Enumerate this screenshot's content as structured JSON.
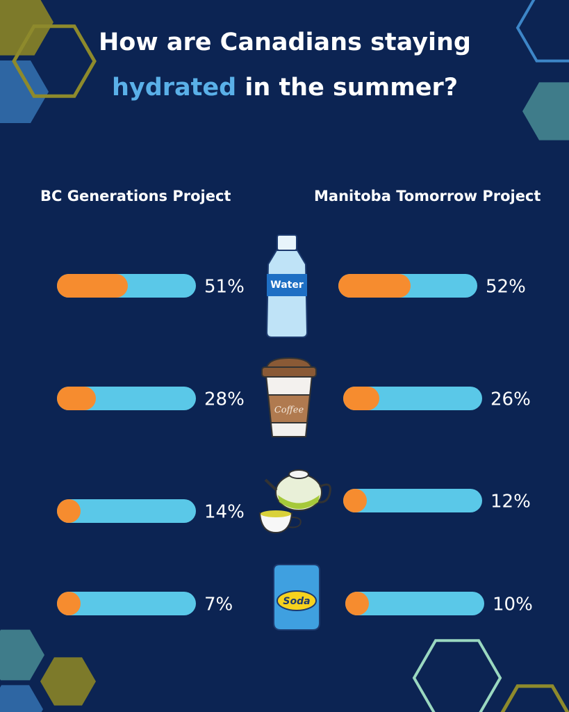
{
  "title": {
    "line1": "How are Canadians staying",
    "highlight": "hydrated",
    "rest": "in the summer?"
  },
  "icons": [
    "Water",
    "Coffee",
    null,
    "Soda"
  ],
  "chart_data": [
    {
      "type": "bar",
      "title": "BC Generations Project",
      "values": [
        51,
        28,
        14,
        7
      ],
      "value_labels": [
        "51%",
        "28%",
        "14%",
        "7%"
      ],
      "xlim": [
        0,
        100
      ],
      "color": "#f68c2f",
      "track_color": "#5ac8e8"
    },
    {
      "type": "bar",
      "title": "Manitoba Tomorrow Project",
      "values": [
        52,
        26,
        12,
        10
      ],
      "value_labels": [
        "52%",
        "26%",
        "12%",
        "10%"
      ],
      "xlim": [
        0,
        100
      ],
      "color": "#f68c2f",
      "track_color": "#5ac8e8"
    }
  ]
}
